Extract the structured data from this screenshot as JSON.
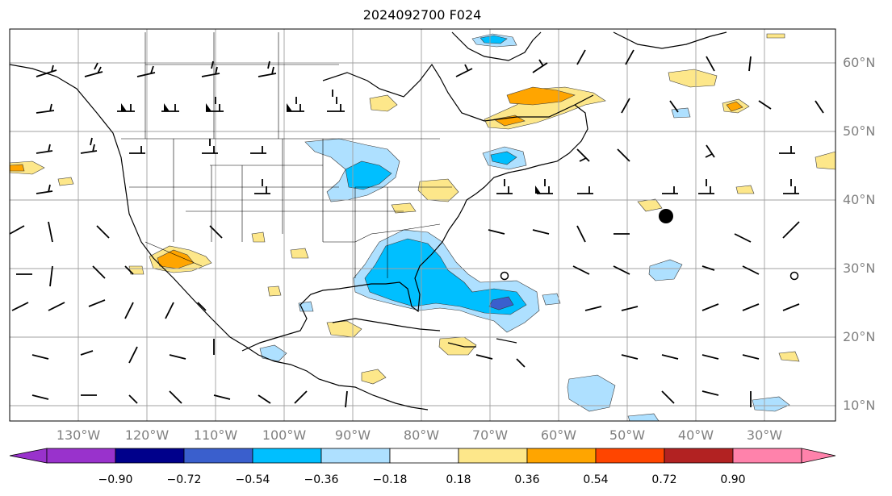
{
  "title": "2024092700 F024",
  "lat_labels": [
    "60°N",
    "50°N",
    "40°N",
    "30°N",
    "20°N",
    "10°N"
  ],
  "lon_labels": [
    "130°W",
    "120°W",
    "110°W",
    "100°W",
    "90°W",
    "80°W",
    "70°W",
    "60°W",
    "50°W",
    "40°W",
    "30°W"
  ],
  "colorbar": {
    "ticks": [
      "−0.90",
      "−0.72",
      "−0.54",
      "−0.36",
      "−0.18",
      "0.18",
      "0.36",
      "0.54",
      "0.72",
      "0.90"
    ],
    "colors": [
      "#9932cc",
      "#00008b",
      "#3a5fcd",
      "#00bfff",
      "#aee0ff",
      "#ffffff",
      "#fde78a",
      "#ffa500",
      "#ff4500",
      "#b22222",
      "#ff82ab"
    ]
  },
  "markers": [
    {
      "type": "filled-dot",
      "lon": -45,
      "lat": 37.5
    },
    {
      "type": "open-circle",
      "lon": -67,
      "lat": 29
    },
    {
      "type": "open-circle",
      "lon": -26,
      "lat": 29
    }
  ]
}
